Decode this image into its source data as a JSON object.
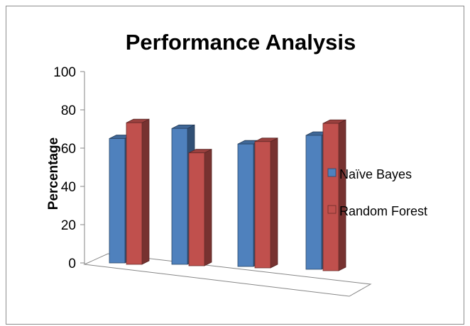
{
  "chart_data": {
    "type": "bar",
    "title": "Performance Analysis",
    "xlabel": "",
    "ylabel": "Percentage",
    "ylim": [
      0,
      100
    ],
    "yticks": [
      0,
      20,
      40,
      60,
      80,
      100
    ],
    "categories": [
      "",
      "",
      "",
      ""
    ],
    "series": [
      {
        "name": "Naïve Bayes",
        "values": [
          65,
          71,
          64,
          70
        ],
        "color": "#4f81bd"
      },
      {
        "name": "Random Forest",
        "values": [
          74,
          59,
          66,
          77
        ],
        "color": "#c0504d"
      }
    ],
    "style": "3d-clustered-column",
    "grid": false,
    "legend_position": "right"
  }
}
